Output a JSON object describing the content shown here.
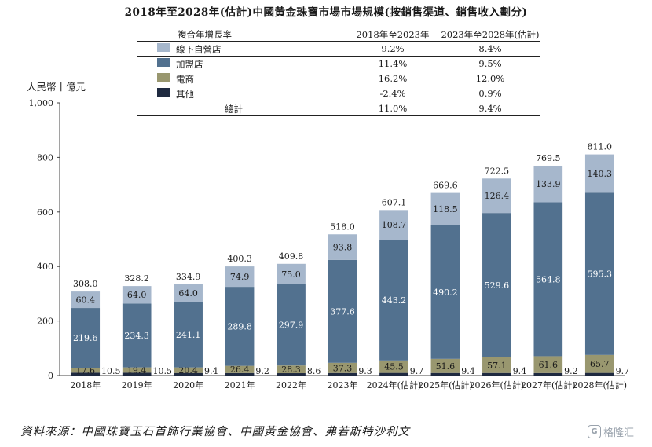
{
  "title": "2018年至2028年(估計)中國黃金珠寶市場市場規模(按銷售渠道、銷售收入劃分)",
  "legend_table": {
    "header": [
      "複合年增長率",
      "2018年至2023年",
      "2023年至2028年(估計)"
    ],
    "rows": [
      {
        "name": "線下自營店",
        "cagr1": "9.2%",
        "cagr2": "8.4%",
        "color": "#a6b7cc"
      },
      {
        "name": "加盟店",
        "cagr1": "11.4%",
        "cagr2": "9.5%",
        "color": "#52718f"
      },
      {
        "name": "電商",
        "cagr1": "16.2%",
        "cagr2": "12.0%",
        "color": "#99976f"
      },
      {
        "name": "其他",
        "cagr1": "-2.4%",
        "cagr2": "0.9%",
        "color": "#1f2a40"
      }
    ],
    "total": {
      "name": "總計",
      "cagr1": "11.0%",
      "cagr2": "9.4%"
    }
  },
  "unit_label": "人民幣十億元",
  "source": "資料來源：中國珠寶玉石首飾行業協會、中國黃金協會、弗若斯特沙利文",
  "watermark": {
    "icon": "G",
    "text": "格隆汇"
  },
  "chart_data": {
    "type": "bar",
    "stacked": true,
    "categories": [
      "2018年",
      "2019年",
      "2020年",
      "2021年",
      "2022年",
      "2023年",
      "2024年(估計)",
      "2025年(估計)",
      "2026年(估計)",
      "2027年(估計)",
      "2028年(估計)"
    ],
    "series": [
      {
        "name": "其他",
        "color": "#1f2a40",
        "values": [
          10.5,
          10.5,
          9.4,
          9.2,
          8.6,
          9.3,
          9.7,
          9.4,
          9.4,
          9.2,
          9.7
        ],
        "labels": [
          "10.5",
          "10.5",
          "9.4",
          "9.2",
          "8.6",
          "9.3",
          "9.7",
          "9.4",
          "9.4",
          "9.2",
          "9.7"
        ]
      },
      {
        "name": "電商",
        "color": "#99976f",
        "values": [
          17.6,
          19.4,
          20.4,
          26.4,
          28.3,
          37.3,
          45.5,
          51.6,
          57.1,
          61.6,
          65.7
        ],
        "labels": [
          "17.6",
          "19.4",
          "20.4",
          "26.4",
          "28.3",
          "37.3",
          "45.5",
          "51.6",
          "57.1",
          "61.6",
          "65.7"
        ]
      },
      {
        "name": "加盟店",
        "color": "#52718f",
        "values": [
          219.6,
          234.3,
          241.1,
          289.8,
          297.9,
          377.6,
          443.2,
          490.2,
          529.6,
          564.8,
          595.3
        ],
        "labels": [
          "219.6",
          "234.3",
          "241.1",
          "289.8",
          "297.9",
          "377.6",
          "443.2",
          "490.2",
          "529.6",
          "564.8",
          "595.3"
        ]
      },
      {
        "name": "線下自營店",
        "color": "#a6b7cc",
        "values": [
          60.4,
          64.0,
          64.0,
          74.9,
          75.0,
          93.8,
          108.7,
          118.5,
          126.4,
          133.9,
          140.3
        ],
        "labels": [
          "60.4",
          "64.0",
          "64.0",
          "74.9",
          "75.0",
          "93.8",
          "108.7",
          "118.5",
          "126.4",
          "133.9",
          "140.3"
        ]
      }
    ],
    "totals": [
      "308.0",
      "328.2",
      "334.9",
      "400.3",
      "409.8",
      "518.0",
      "607.1",
      "669.6",
      "722.5",
      "769.5",
      "811.0"
    ],
    "ylim": [
      0,
      1000
    ],
    "yticks": [
      0,
      200,
      400,
      600,
      800,
      1000
    ],
    "ytick_labels": [
      "0",
      "200",
      "400",
      "600",
      "800",
      "1,000"
    ],
    "ylabel": "人民幣十億元",
    "grid": false
  }
}
